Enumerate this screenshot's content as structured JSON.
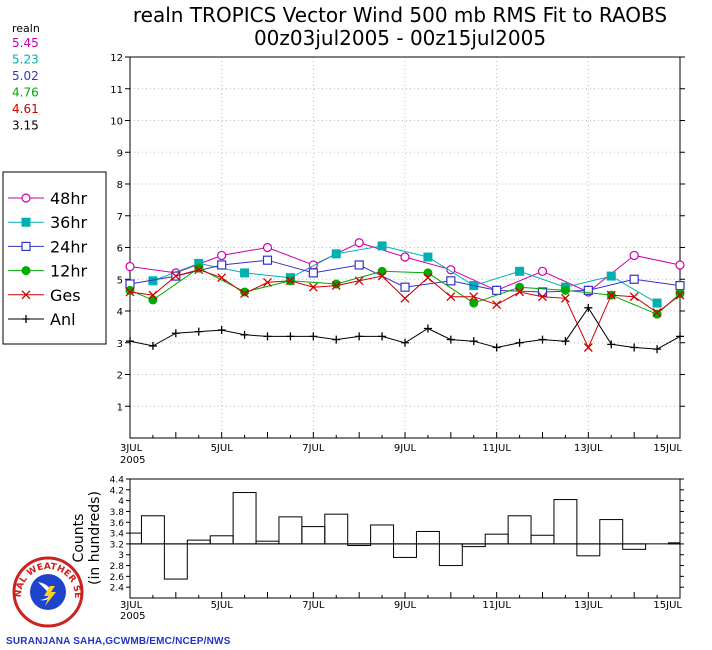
{
  "title_line1": "realn TROPICS Vector Wind 500 mb RMS Fit to RAOBS",
  "title_line2": "00z03jul2005 - 00z15jul2005",
  "means": {
    "header": "realn",
    "values": [
      {
        "text": "5.45",
        "color": "#cc00aa"
      },
      {
        "text": "5.23",
        "color": "#00b0b0"
      },
      {
        "text": "5.02",
        "color": "#3333cc"
      },
      {
        "text": "4.76",
        "color": "#00aa00"
      },
      {
        "text": "4.61",
        "color": "#cc0000"
      },
      {
        "text": "3.15",
        "color": "#000000"
      }
    ]
  },
  "credit": "SURANJANA SAHA,GCWMB/EMC/NCEP/NWS",
  "logo_text": "NATIONAL WEATHER SERVICE",
  "chart_data": [
    {
      "type": "line",
      "xlim": [
        3,
        15
      ],
      "ylim": [
        0,
        12
      ],
      "ytick_labels": [
        "1",
        "2",
        "3",
        "4",
        "5",
        "6",
        "7",
        "8",
        "9",
        "10",
        "11",
        "12"
      ],
      "xtick_labels": [
        "3JUL",
        "5JUL",
        "7JUL",
        "9JUL",
        "11JUL",
        "13JUL",
        "15JUL"
      ],
      "xtick_values": [
        3,
        5,
        7,
        9,
        11,
        13,
        15
      ],
      "year_label": "2005",
      "legend_position": "left",
      "series": [
        {
          "name": "48hr",
          "color": "#cc00aa",
          "marker": "circle-open",
          "x": [
            3,
            4,
            5,
            6,
            7,
            8,
            9,
            10,
            11,
            12,
            13,
            14,
            15
          ],
          "y": [
            5.4,
            5.2,
            5.75,
            6.0,
            5.45,
            6.15,
            5.7,
            5.3,
            4.65,
            5.25,
            4.6,
            5.75,
            5.45
          ]
        },
        {
          "name": "36hr",
          "color": "#00b0b0",
          "marker": "square-filled",
          "x": [
            3.5,
            4.5,
            5.5,
            6.5,
            7.5,
            8.5,
            9.5,
            10.5,
            11.5,
            12.5,
            13.5,
            14.5
          ],
          "y": [
            4.95,
            5.5,
            5.2,
            5.05,
            5.8,
            6.05,
            5.7,
            4.8,
            5.25,
            4.75,
            5.1,
            4.25
          ]
        },
        {
          "name": "24hr",
          "color": "#3333cc",
          "marker": "square-open",
          "x": [
            3,
            4,
            5,
            6,
            7,
            8,
            9,
            10,
            11,
            12,
            13,
            14,
            15
          ],
          "y": [
            4.85,
            5.1,
            5.45,
            5.6,
            5.2,
            5.45,
            4.75,
            4.95,
            4.65,
            4.6,
            4.65,
            5.0,
            4.8
          ]
        },
        {
          "name": "12hr",
          "color": "#00aa00",
          "marker": "circle-filled",
          "x": [
            3,
            3.5,
            4.5,
            5.5,
            6.5,
            7.5,
            8.5,
            9.5,
            10.5,
            11.5,
            12.5,
            13.5,
            14.5,
            15
          ],
          "y": [
            4.65,
            4.35,
            5.35,
            4.6,
            4.95,
            4.85,
            5.25,
            5.2,
            4.25,
            4.75,
            4.65,
            4.5,
            3.9,
            4.55
          ]
        },
        {
          "name": "Ges",
          "color": "#cc0000",
          "marker": "x",
          "x": [
            3,
            3.5,
            4,
            4.5,
            5,
            5.5,
            6,
            6.5,
            7,
            7.5,
            8,
            8.5,
            9,
            9.5,
            10,
            10.5,
            11,
            11.5,
            12,
            12.5,
            13,
            13.5,
            14,
            14.5,
            15
          ],
          "y": [
            4.6,
            4.5,
            5.1,
            5.3,
            5.05,
            4.55,
            4.9,
            4.95,
            4.75,
            4.8,
            4.95,
            5.1,
            4.4,
            5.05,
            4.45,
            4.45,
            4.2,
            4.6,
            4.45,
            4.4,
            2.85,
            4.5,
            4.45,
            3.95,
            4.5
          ]
        },
        {
          "name": "Anl",
          "color": "#000000",
          "marker": "plus",
          "x": [
            3,
            3.5,
            4,
            4.5,
            5,
            5.5,
            6,
            6.5,
            7,
            7.5,
            8,
            8.5,
            9,
            9.5,
            10,
            10.5,
            11,
            11.5,
            12,
            12.5,
            13,
            13.5,
            14,
            14.5,
            15
          ],
          "y": [
            3.05,
            2.9,
            3.3,
            3.35,
            3.4,
            3.25,
            3.2,
            3.2,
            3.2,
            3.1,
            3.2,
            3.2,
            3.0,
            3.45,
            3.1,
            3.05,
            2.85,
            3.0,
            3.1,
            3.05,
            4.1,
            2.95,
            2.85,
            2.8,
            3.2
          ]
        }
      ]
    },
    {
      "type": "bar",
      "ylabel": "Counts\n(in hundreds)",
      "ylim": [
        2.2,
        4.4
      ],
      "ytick_labels": [
        "2.4",
        "2.6",
        "2.8",
        "3",
        "3.2",
        "3.4",
        "3.6",
        "3.8",
        "4",
        "4.2",
        "4.4"
      ],
      "ytick_values": [
        2.4,
        2.6,
        2.8,
        3.0,
        3.2,
        3.4,
        3.6,
        3.8,
        4.0,
        4.2,
        4.4
      ],
      "baseline": 3.2,
      "xlim": [
        3,
        15
      ],
      "xtick_labels": [
        "3JUL",
        "5JUL",
        "7JUL",
        "9JUL",
        "11JUL",
        "13JUL",
        "15JUL"
      ],
      "xtick_values": [
        3,
        5,
        7,
        9,
        11,
        13,
        15
      ],
      "year_label": "2005",
      "x": [
        3,
        3.5,
        4,
        4.5,
        5,
        5.5,
        6,
        6.5,
        7,
        7.5,
        8,
        8.5,
        9,
        9.5,
        10,
        10.5,
        11,
        11.5,
        12,
        12.5,
        13,
        13.5,
        14,
        14.5,
        15
      ],
      "values": [
        3.4,
        3.72,
        2.55,
        3.27,
        3.35,
        4.15,
        3.25,
        3.7,
        3.52,
        3.75,
        3.17,
        3.55,
        2.95,
        3.43,
        2.8,
        3.15,
        3.38,
        3.72,
        3.36,
        4.02,
        2.98,
        3.65,
        3.1,
        3.2,
        3.22
      ]
    }
  ]
}
